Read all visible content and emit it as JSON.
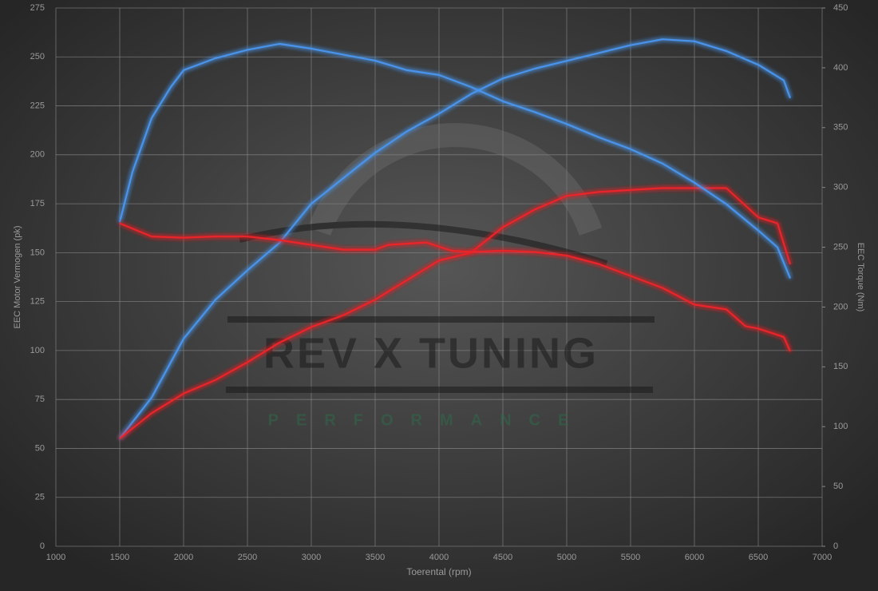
{
  "chart_data": {
    "type": "line",
    "xlabel": "Toerental (rpm)",
    "ylabel": "EEC Motor Vermogen (pk)",
    "y2label": "EEC Torque (Nm)",
    "watermark": "REV X TUNING",
    "watermark_subtitle": "PERFORMANCE",
    "xlim": [
      1000,
      7000
    ],
    "xticks": [
      1000,
      1500,
      2000,
      2500,
      3000,
      3500,
      4000,
      4500,
      5000,
      5500,
      6000,
      6500,
      7000
    ],
    "ylim": [
      0,
      275
    ],
    "yticks": [
      0,
      25,
      50,
      75,
      100,
      125,
      150,
      175,
      200,
      225,
      250,
      275
    ],
    "y2lim": [
      0,
      450
    ],
    "y2ticks": [
      0,
      50,
      100,
      150,
      200,
      250,
      300,
      350,
      400,
      450
    ],
    "grid": true,
    "series": [
      {
        "color": "#4a94ea",
        "axis": "y",
        "x": [
          1500,
          1750,
          2000,
          2250,
          2500,
          2750,
          3000,
          3250,
          3500,
          3750,
          4000,
          4250,
          4500,
          4750,
          5000,
          5250,
          5500,
          5750,
          6000,
          6250,
          6500,
          6700,
          6750
        ],
        "values": [
          55,
          76,
          106,
          126,
          141,
          155,
          175,
          188,
          201,
          212,
          221,
          231,
          239,
          244,
          248,
          252,
          256,
          259,
          258,
          253,
          246,
          238,
          229
        ]
      },
      {
        "color": "#e8262a",
        "axis": "y",
        "x": [
          1500,
          1750,
          2000,
          2250,
          2500,
          2750,
          3000,
          3250,
          3500,
          3750,
          4000,
          4250,
          4500,
          4750,
          5000,
          5250,
          5500,
          5750,
          6000,
          6250,
          6400,
          6500,
          6650,
          6750
        ],
        "values": [
          55,
          68,
          78,
          85,
          94,
          104,
          112,
          118,
          126,
          136,
          146,
          150,
          163,
          172,
          179,
          181,
          182,
          183,
          183,
          183,
          174,
          168,
          165,
          144
        ]
      },
      {
        "color": "#4a94ea",
        "axis": "y2",
        "x": [
          1500,
          1600,
          1750,
          1900,
          2000,
          2250,
          2500,
          2750,
          3000,
          3250,
          3500,
          3750,
          4000,
          4250,
          4500,
          4750,
          5000,
          5250,
          5500,
          5750,
          6000,
          6250,
          6500,
          6650,
          6750
        ],
        "values": [
          271,
          313,
          358,
          384,
          398,
          408,
          415,
          420,
          416,
          411,
          406,
          398,
          394,
          384,
          372,
          363,
          353,
          342,
          332,
          320,
          304,
          286,
          264,
          250,
          224
        ]
      },
      {
        "color": "#e8262a",
        "axis": "y2",
        "x": [
          1500,
          1750,
          2000,
          2250,
          2500,
          2750,
          3000,
          3250,
          3500,
          3600,
          3900,
          4100,
          4250,
          4500,
          4750,
          5000,
          5250,
          5500,
          5750,
          6000,
          6250,
          6400,
          6500,
          6700,
          6750
        ],
        "values": [
          270,
          259,
          258,
          259,
          259,
          256,
          252,
          248,
          248,
          252,
          254,
          247,
          246,
          247,
          246,
          243,
          236,
          226,
          216,
          202,
          198,
          184,
          182,
          175,
          163
        ]
      }
    ]
  }
}
